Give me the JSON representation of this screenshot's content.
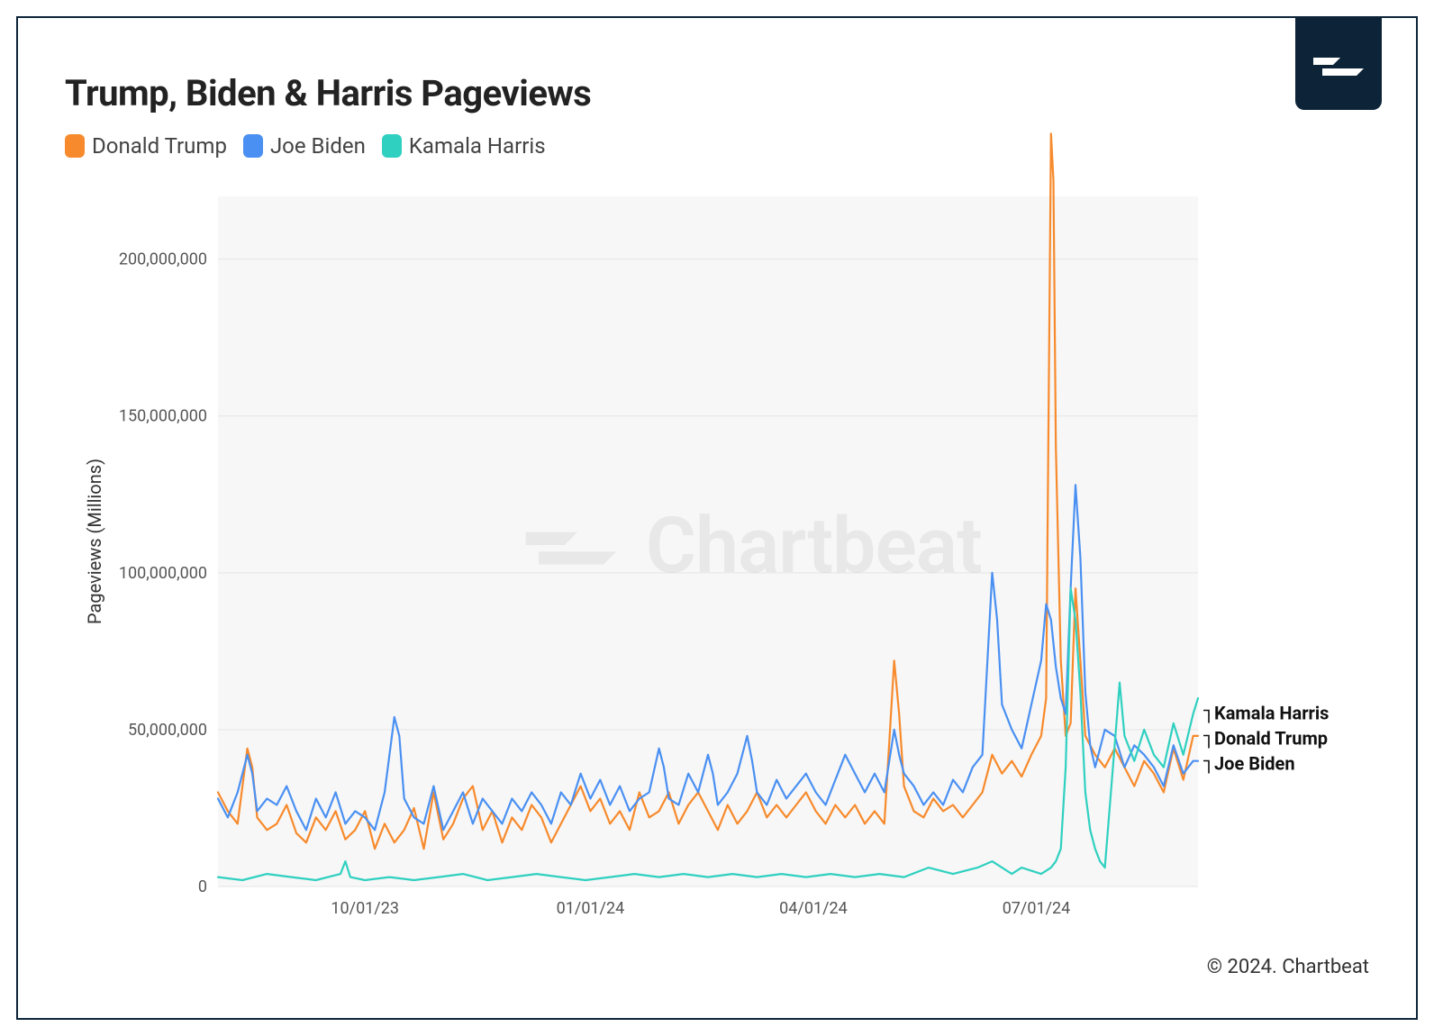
{
  "title": "Trump, Biden & Harris Pageviews",
  "ylabel": "Pageviews (Millions)",
  "copyright": "© 2024. Chartbeat",
  "watermark_text": "Chartbeat",
  "chart": {
    "type": "line",
    "background_color": "#f7f7f7",
    "grid_color": "#e6e6e6",
    "axis_color": "#888888",
    "ylim": [
      0,
      220000000
    ],
    "ytick_step": 50000000,
    "yticks": [
      {
        "v": 0,
        "label": "0"
      },
      {
        "v": 50000000,
        "label": "50,000,000"
      },
      {
        "v": 100000000,
        "label": "100,000,000"
      },
      {
        "v": 150000000,
        "label": "150,000,000"
      },
      {
        "v": 200000000,
        "label": "200,000,000"
      }
    ],
    "xrange": [
      0,
      400
    ],
    "xticks": [
      {
        "x": 60,
        "label": "10/01/23"
      },
      {
        "x": 152,
        "label": "01/01/24"
      },
      {
        "x": 243,
        "label": "04/01/24"
      },
      {
        "x": 334,
        "label": "07/01/24"
      }
    ],
    "line_width": 2.2,
    "title_fontsize": 40,
    "label_fontsize": 20,
    "tick_fontsize": 18
  },
  "series": [
    {
      "name": "Donald Trump",
      "color": "#f78a2c",
      "end_label": "Donald Trump",
      "end_y": 48000000,
      "data": [
        [
          0,
          30
        ],
        [
          4,
          24
        ],
        [
          8,
          20
        ],
        [
          12,
          44
        ],
        [
          14,
          38
        ],
        [
          16,
          22
        ],
        [
          20,
          18
        ],
        [
          24,
          20
        ],
        [
          28,
          26
        ],
        [
          32,
          17
        ],
        [
          36,
          14
        ],
        [
          40,
          22
        ],
        [
          44,
          18
        ],
        [
          48,
          24
        ],
        [
          52,
          15
        ],
        [
          56,
          18
        ],
        [
          60,
          24
        ],
        [
          64,
          12
        ],
        [
          68,
          20
        ],
        [
          72,
          14
        ],
        [
          76,
          18
        ],
        [
          80,
          25
        ],
        [
          84,
          12
        ],
        [
          88,
          30
        ],
        [
          92,
          15
        ],
        [
          96,
          20
        ],
        [
          100,
          28
        ],
        [
          104,
          32
        ],
        [
          108,
          18
        ],
        [
          112,
          24
        ],
        [
          116,
          14
        ],
        [
          120,
          22
        ],
        [
          124,
          18
        ],
        [
          128,
          26
        ],
        [
          132,
          22
        ],
        [
          136,
          14
        ],
        [
          140,
          20
        ],
        [
          144,
          26
        ],
        [
          148,
          32
        ],
        [
          152,
          24
        ],
        [
          156,
          28
        ],
        [
          160,
          20
        ],
        [
          164,
          24
        ],
        [
          168,
          18
        ],
        [
          172,
          30
        ],
        [
          176,
          22
        ],
        [
          180,
          24
        ],
        [
          184,
          30
        ],
        [
          188,
          20
        ],
        [
          192,
          26
        ],
        [
          196,
          30
        ],
        [
          200,
          24
        ],
        [
          204,
          18
        ],
        [
          208,
          26
        ],
        [
          212,
          20
        ],
        [
          216,
          24
        ],
        [
          220,
          30
        ],
        [
          224,
          22
        ],
        [
          228,
          26
        ],
        [
          232,
          22
        ],
        [
          236,
          26
        ],
        [
          240,
          30
        ],
        [
          244,
          24
        ],
        [
          248,
          20
        ],
        [
          252,
          26
        ],
        [
          256,
          22
        ],
        [
          260,
          26
        ],
        [
          264,
          20
        ],
        [
          268,
          24
        ],
        [
          272,
          20
        ],
        [
          276,
          72
        ],
        [
          278,
          55
        ],
        [
          280,
          32
        ],
        [
          284,
          24
        ],
        [
          288,
          22
        ],
        [
          292,
          28
        ],
        [
          296,
          24
        ],
        [
          300,
          26
        ],
        [
          304,
          22
        ],
        [
          308,
          26
        ],
        [
          312,
          30
        ],
        [
          316,
          42
        ],
        [
          320,
          36
        ],
        [
          324,
          40
        ],
        [
          328,
          35
        ],
        [
          332,
          42
        ],
        [
          336,
          48
        ],
        [
          338,
          60
        ],
        [
          340,
          240
        ],
        [
          341,
          225
        ],
        [
          342,
          140
        ],
        [
          344,
          72
        ],
        [
          346,
          48
        ],
        [
          348,
          52
        ],
        [
          350,
          95
        ],
        [
          352,
          72
        ],
        [
          354,
          48
        ],
        [
          358,
          42
        ],
        [
          362,
          38
        ],
        [
          366,
          44
        ],
        [
          370,
          38
        ],
        [
          374,
          32
        ],
        [
          378,
          40
        ],
        [
          382,
          36
        ],
        [
          386,
          30
        ],
        [
          390,
          44
        ],
        [
          394,
          34
        ],
        [
          398,
          48
        ],
        [
          400,
          48
        ]
      ]
    },
    {
      "name": "Joe Biden",
      "color": "#4a90f2",
      "end_label": "Joe Biden",
      "end_y": 40000000,
      "data": [
        [
          0,
          28
        ],
        [
          4,
          22
        ],
        [
          8,
          30
        ],
        [
          12,
          42
        ],
        [
          14,
          36
        ],
        [
          16,
          24
        ],
        [
          20,
          28
        ],
        [
          24,
          26
        ],
        [
          28,
          32
        ],
        [
          32,
          24
        ],
        [
          36,
          18
        ],
        [
          40,
          28
        ],
        [
          44,
          22
        ],
        [
          48,
          30
        ],
        [
          52,
          20
        ],
        [
          56,
          24
        ],
        [
          60,
          22
        ],
        [
          64,
          18
        ],
        [
          68,
          30
        ],
        [
          72,
          54
        ],
        [
          74,
          48
        ],
        [
          76,
          28
        ],
        [
          80,
          22
        ],
        [
          84,
          20
        ],
        [
          88,
          32
        ],
        [
          92,
          18
        ],
        [
          96,
          24
        ],
        [
          100,
          30
        ],
        [
          104,
          20
        ],
        [
          108,
          28
        ],
        [
          112,
          24
        ],
        [
          116,
          20
        ],
        [
          120,
          28
        ],
        [
          124,
          24
        ],
        [
          128,
          30
        ],
        [
          132,
          26
        ],
        [
          136,
          20
        ],
        [
          140,
          30
        ],
        [
          144,
          26
        ],
        [
          148,
          36
        ],
        [
          152,
          28
        ],
        [
          156,
          34
        ],
        [
          160,
          26
        ],
        [
          164,
          32
        ],
        [
          168,
          24
        ],
        [
          172,
          28
        ],
        [
          176,
          30
        ],
        [
          180,
          44
        ],
        [
          182,
          38
        ],
        [
          184,
          28
        ],
        [
          188,
          26
        ],
        [
          192,
          36
        ],
        [
          196,
          30
        ],
        [
          200,
          42
        ],
        [
          202,
          36
        ],
        [
          204,
          26
        ],
        [
          208,
          30
        ],
        [
          212,
          36
        ],
        [
          216,
          48
        ],
        [
          218,
          40
        ],
        [
          220,
          30
        ],
        [
          224,
          26
        ],
        [
          228,
          34
        ],
        [
          232,
          28
        ],
        [
          236,
          32
        ],
        [
          240,
          36
        ],
        [
          244,
          30
        ],
        [
          248,
          26
        ],
        [
          252,
          34
        ],
        [
          256,
          42
        ],
        [
          260,
          36
        ],
        [
          264,
          30
        ],
        [
          268,
          36
        ],
        [
          272,
          30
        ],
        [
          276,
          50
        ],
        [
          278,
          42
        ],
        [
          280,
          36
        ],
        [
          284,
          32
        ],
        [
          288,
          26
        ],
        [
          292,
          30
        ],
        [
          296,
          26
        ],
        [
          300,
          34
        ],
        [
          304,
          30
        ],
        [
          308,
          38
        ],
        [
          312,
          42
        ],
        [
          316,
          100
        ],
        [
          318,
          85
        ],
        [
          320,
          58
        ],
        [
          324,
          50
        ],
        [
          328,
          44
        ],
        [
          332,
          58
        ],
        [
          336,
          72
        ],
        [
          338,
          90
        ],
        [
          340,
          85
        ],
        [
          342,
          70
        ],
        [
          344,
          60
        ],
        [
          346,
          55
        ],
        [
          348,
          95
        ],
        [
          350,
          128
        ],
        [
          352,
          105
        ],
        [
          354,
          62
        ],
        [
          356,
          45
        ],
        [
          358,
          38
        ],
        [
          362,
          50
        ],
        [
          366,
          48
        ],
        [
          370,
          38
        ],
        [
          374,
          45
        ],
        [
          378,
          42
        ],
        [
          382,
          38
        ],
        [
          386,
          32
        ],
        [
          390,
          45
        ],
        [
          394,
          36
        ],
        [
          398,
          40
        ],
        [
          400,
          40
        ]
      ]
    },
    {
      "name": "Kamala Harris",
      "color": "#2fd0c0",
      "end_label": "Kamala Harris",
      "end_y": 60000000,
      "data": [
        [
          0,
          3
        ],
        [
          10,
          2
        ],
        [
          20,
          4
        ],
        [
          30,
          3
        ],
        [
          40,
          2
        ],
        [
          50,
          4
        ],
        [
          52,
          8
        ],
        [
          54,
          3
        ],
        [
          60,
          2
        ],
        [
          70,
          3
        ],
        [
          80,
          2
        ],
        [
          90,
          3
        ],
        [
          100,
          4
        ],
        [
          110,
          2
        ],
        [
          120,
          3
        ],
        [
          130,
          4
        ],
        [
          140,
          3
        ],
        [
          150,
          2
        ],
        [
          160,
          3
        ],
        [
          170,
          4
        ],
        [
          180,
          3
        ],
        [
          190,
          4
        ],
        [
          200,
          3
        ],
        [
          210,
          4
        ],
        [
          220,
          3
        ],
        [
          230,
          4
        ],
        [
          240,
          3
        ],
        [
          250,
          4
        ],
        [
          260,
          3
        ],
        [
          270,
          4
        ],
        [
          280,
          3
        ],
        [
          290,
          6
        ],
        [
          300,
          4
        ],
        [
          310,
          6
        ],
        [
          316,
          8
        ],
        [
          320,
          6
        ],
        [
          324,
          4
        ],
        [
          328,
          6
        ],
        [
          332,
          5
        ],
        [
          336,
          4
        ],
        [
          338,
          5
        ],
        [
          340,
          6
        ],
        [
          342,
          8
        ],
        [
          344,
          12
        ],
        [
          346,
          38
        ],
        [
          348,
          95
        ],
        [
          350,
          85
        ],
        [
          352,
          62
        ],
        [
          354,
          30
        ],
        [
          356,
          18
        ],
        [
          358,
          12
        ],
        [
          360,
          8
        ],
        [
          362,
          6
        ],
        [
          366,
          45
        ],
        [
          368,
          65
        ],
        [
          370,
          48
        ],
        [
          374,
          40
        ],
        [
          378,
          50
        ],
        [
          382,
          42
        ],
        [
          386,
          38
        ],
        [
          390,
          52
        ],
        [
          394,
          42
        ],
        [
          398,
          55
        ],
        [
          400,
          60
        ]
      ]
    }
  ],
  "end_labels_order": [
    "Kamala Harris",
    "Donald Trump",
    "Joe Biden"
  ]
}
